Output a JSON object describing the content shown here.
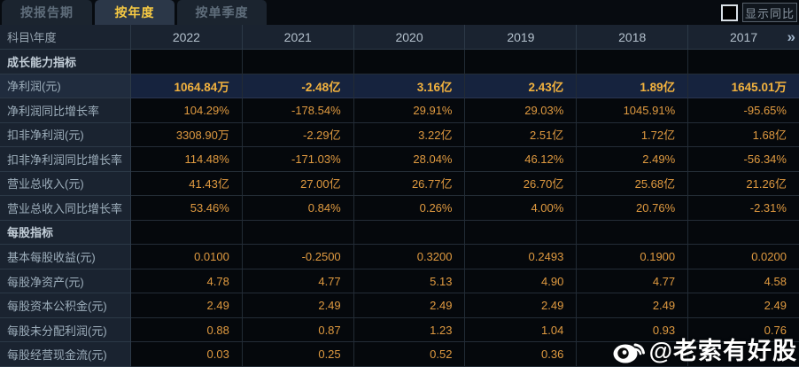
{
  "tabs": [
    {
      "label": "按报告期",
      "active": false
    },
    {
      "label": "按年度",
      "active": true
    },
    {
      "label": "按单季度",
      "active": false
    }
  ],
  "controls": {
    "show_yoy_label": "显示同比",
    "checkbox_checked": false
  },
  "table": {
    "corner_label": "科目\\年度",
    "years": [
      "2022",
      "2021",
      "2020",
      "2019",
      "2018",
      "2017"
    ],
    "more_icon": "»",
    "rows": [
      {
        "type": "section",
        "label": "成长能力指标",
        "values": [
          "",
          "",
          "",
          "",
          "",
          ""
        ]
      },
      {
        "type": "data",
        "highlight": true,
        "label": "净利润(元)",
        "values": [
          "1064.84万",
          "-2.48亿",
          "3.16亿",
          "2.43亿",
          "1.89亿",
          "1645.01万"
        ]
      },
      {
        "type": "data",
        "label": "净利润同比增长率",
        "values": [
          "104.29%",
          "-178.54%",
          "29.91%",
          "29.03%",
          "1045.91%",
          "-95.65%"
        ]
      },
      {
        "type": "data",
        "label": "扣非净利润(元)",
        "values": [
          "3308.90万",
          "-2.29亿",
          "3.22亿",
          "2.51亿",
          "1.72亿",
          "1.68亿"
        ]
      },
      {
        "type": "data",
        "label": "扣非净利润同比增长率",
        "values": [
          "114.48%",
          "-171.03%",
          "28.04%",
          "46.12%",
          "2.49%",
          "-56.34%"
        ]
      },
      {
        "type": "data",
        "label": "营业总收入(元)",
        "values": [
          "41.43亿",
          "27.00亿",
          "26.77亿",
          "26.70亿",
          "25.68亿",
          "21.26亿"
        ]
      },
      {
        "type": "data",
        "label": "营业总收入同比增长率",
        "values": [
          "53.46%",
          "0.84%",
          "0.26%",
          "4.00%",
          "20.76%",
          "-2.31%"
        ]
      },
      {
        "type": "section",
        "label": "每股指标",
        "values": [
          "",
          "",
          "",
          "",
          "",
          ""
        ]
      },
      {
        "type": "data",
        "label": "基本每股收益(元)",
        "values": [
          "0.0100",
          "-0.2500",
          "0.3200",
          "0.2493",
          "0.1900",
          "0.0200"
        ]
      },
      {
        "type": "data",
        "label": "每股净资产(元)",
        "values": [
          "4.78",
          "4.77",
          "5.13",
          "4.90",
          "4.77",
          "4.58"
        ]
      },
      {
        "type": "data",
        "label": "每股资本公积金(元)",
        "values": [
          "2.49",
          "2.49",
          "2.49",
          "2.49",
          "2.49",
          "2.49"
        ]
      },
      {
        "type": "data",
        "label": "每股未分配利润(元)",
        "values": [
          "0.88",
          "0.87",
          "1.23",
          "1.04",
          "0.93",
          "0.76"
        ]
      },
      {
        "type": "data",
        "label": "每股经营现金流(元)",
        "values": [
          "0.03",
          "0.25",
          "0.52",
          "0.36",
          "",
          ""
        ]
      }
    ]
  },
  "watermark": {
    "text": "@老索有好股",
    "icon": "weibo-logo"
  },
  "colors": {
    "accent_gold": "#f7ca43",
    "value_orange": "#e09a40",
    "highlight_row_bg": "#16233e",
    "panel_bg": "#1a2330",
    "page_bg": "#070b10"
  }
}
